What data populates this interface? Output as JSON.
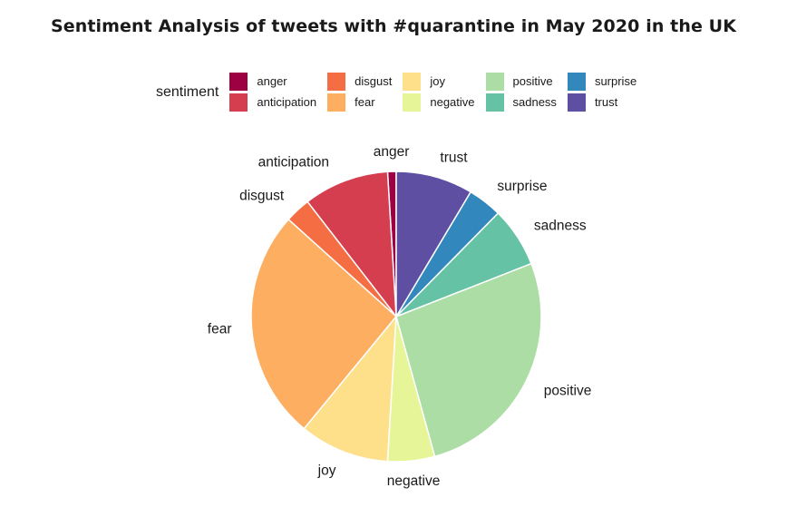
{
  "chart_data": {
    "type": "pie",
    "title": "Sentiment Analysis of tweets with #quarantine in May 2020 in the UK",
    "legend_title": "sentiment",
    "legend_position": "top",
    "slices": [
      {
        "label": "anger",
        "value": 1.0,
        "color": "#9E0142"
      },
      {
        "label": "anticipation",
        "value": 10.0,
        "color": "#D53E4F"
      },
      {
        "label": "disgust",
        "value": 3.0,
        "color": "#F46D43"
      },
      {
        "label": "fear",
        "value": 27.0,
        "color": "#FDAE61"
      },
      {
        "label": "joy",
        "value": 10.5,
        "color": "#FEE08B"
      },
      {
        "label": "negative",
        "value": 5.5,
        "color": "#E6F598"
      },
      {
        "label": "positive",
        "value": 28.0,
        "color": "#ABDDA4"
      },
      {
        "label": "sadness",
        "value": 7.0,
        "color": "#66C2A5"
      },
      {
        "label": "surprise",
        "value": 4.0,
        "color": "#3288BD"
      },
      {
        "label": "trust",
        "value": 9.0,
        "color": "#5E4FA2"
      }
    ]
  }
}
